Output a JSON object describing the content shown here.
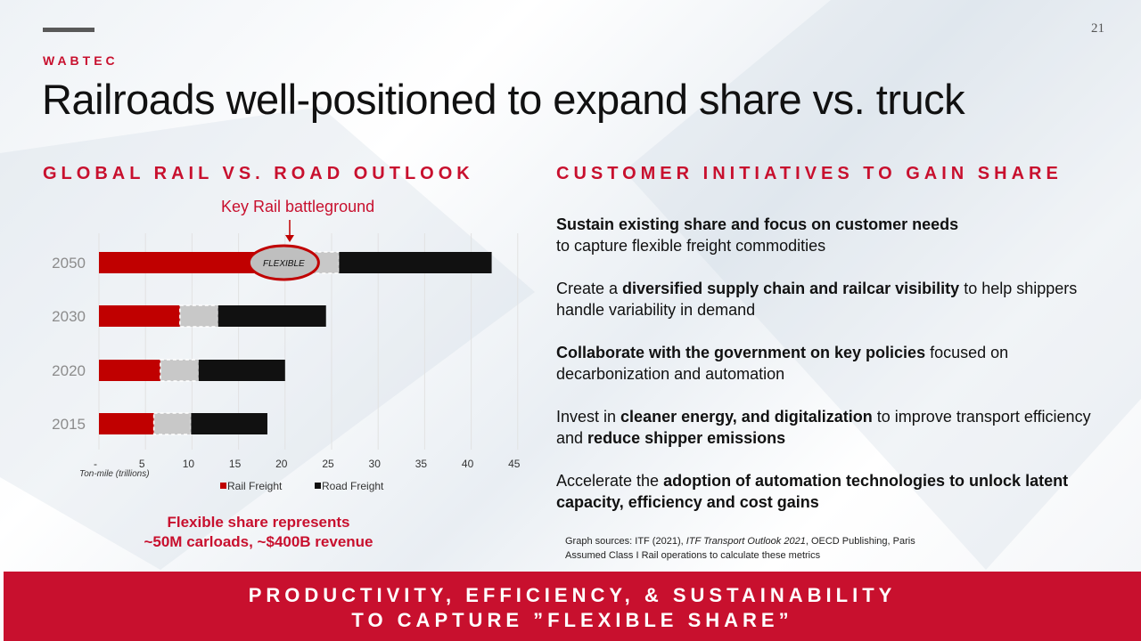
{
  "brand": "WABTEC",
  "page_number": "21",
  "title": "Railroads well-positioned to expand share vs. truck",
  "left_heading": "GLOBAL RAIL VS. ROAD OUTLOOK",
  "right_heading": "CUSTOMER INITIATIVES TO GAIN SHARE",
  "callout": "Key Rail battleground",
  "flexible_label": "FLEXIBLE",
  "flex_note": [
    "Flexible share represents",
    "~50M carloads, ~$400B revenue"
  ],
  "chart_data": {
    "type": "bar",
    "orientation": "horizontal",
    "stacked": true,
    "categories": [
      "2050",
      "2030",
      "2020",
      "2015"
    ],
    "series": [
      {
        "name": "Rail Freight",
        "values": [
          16.8,
          8.7,
          6.6,
          5.9
        ],
        "color": "#c00000"
      },
      {
        "name": "Flexible",
        "values": [
          9.0,
          4.1,
          4.1,
          4.0
        ],
        "color": "#c8c8c8"
      },
      {
        "name": "Road Freight",
        "values": [
          16.4,
          11.6,
          9.3,
          8.2
        ],
        "color": "#111111"
      }
    ],
    "x_tick_labels": [
      "-",
      "5",
      "10",
      "15",
      "20",
      "25",
      "30",
      "35",
      "40",
      "45"
    ],
    "xlim": [
      0,
      45
    ],
    "xlabel": "Ton-mile (trillions)",
    "legend": [
      "Rail Freight",
      "Road Freight"
    ],
    "legend_position": "bottom",
    "grid": true
  },
  "bullets": [
    [
      {
        "t": "Sustain existing share and focus on customer needs",
        "b": true
      },
      {
        "t": "\nto capture flexible freight commodities",
        "b": false
      }
    ],
    [
      {
        "t": "Create a ",
        "b": false
      },
      {
        "t": "diversified supply chain and railcar visibility",
        "b": true
      },
      {
        "t": " to help shippers handle variability in demand",
        "b": false
      }
    ],
    [
      {
        "t": "Collaborate with the government on key policies",
        "b": true
      },
      {
        "t": " focused on decarbonization and automation",
        "b": false
      }
    ],
    [
      {
        "t": "Invest in ",
        "b": false
      },
      {
        "t": "cleaner energy, and digitalization",
        "b": true
      },
      {
        "t": " to improve transport efficiency and ",
        "b": false
      },
      {
        "t": "reduce shipper emissions",
        "b": true
      }
    ],
    [
      {
        "t": "Accelerate the ",
        "b": false
      },
      {
        "t": "adoption of automation technologies to unlock latent capacity, efficiency and cost gains",
        "b": true
      }
    ]
  ],
  "source_lines": [
    [
      {
        "t": "Graph sources: ITF (2021), ",
        "i": false
      },
      {
        "t": "ITF Transport Outlook 2021",
        "i": true
      },
      {
        "t": ", OECD Publishing,  Paris",
        "i": false
      }
    ],
    [
      {
        "t": "Assumed Class I Rail operations to calculate these metrics",
        "i": false
      }
    ]
  ],
  "footer": [
    "PRODUCTIVITY, EFFICIENCY, & SUSTAINABILITY",
    "TO CAPTURE ”FLEXIBLE SHARE”"
  ]
}
